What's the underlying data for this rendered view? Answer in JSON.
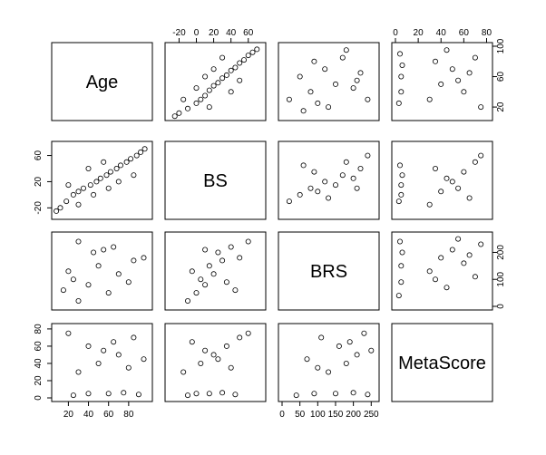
{
  "chart_data": {
    "type": "scatter",
    "variables": [
      "Age",
      "BS",
      "BRS",
      "MetaScore"
    ],
    "axes": {
      "Age": {
        "range": [
          7,
          100
        ],
        "ticks": [
          20,
          40,
          60,
          80
        ],
        "tick_labels": [
          "20",
          "40",
          "60",
          "80"
        ]
      },
      "BS": {
        "range": [
          -32,
          76
        ],
        "ticks": [
          -20,
          0,
          20,
          40,
          60
        ],
        "tick_labels": [
          "-20",
          "0",
          "20",
          "40",
          "60"
        ]
      },
      "BRS": {
        "range": [
          0,
          262
        ],
        "ticks": [
          0,
          50,
          100,
          150,
          200,
          250
        ],
        "tick_labels": [
          "0",
          "50",
          "100",
          "150",
          "200",
          "250"
        ]
      },
      "MetaScore": {
        "range": [
          0,
          82
        ],
        "ticks": [
          0,
          20,
          40,
          60,
          80
        ],
        "tick_labels": [
          "0",
          "20",
          "40",
          "60",
          "80"
        ]
      }
    },
    "right_axis_ticks": {
      "Age": {
        "ticks": [
          20,
          60,
          100
        ],
        "tick_labels": [
          "20",
          "60",
          "100"
        ]
      },
      "BRS": {
        "ticks": [
          0,
          100,
          200
        ],
        "tick_labels": [
          "0",
          "100",
          "200"
        ]
      }
    },
    "left_axis_ticks": {
      "BS": {
        "ticks": [
          -20,
          20,
          60
        ],
        "tick_labels": [
          "-20",
          "20",
          "60"
        ]
      }
    },
    "pairs": [
      {
        "x": "BS",
        "y": "Age",
        "relationship": "positive, roughly linear",
        "points": [
          [
            -20,
            12
          ],
          [
            -10,
            18
          ],
          [
            0,
            25
          ],
          [
            5,
            30
          ],
          [
            10,
            35
          ],
          [
            15,
            42
          ],
          [
            20,
            48
          ],
          [
            25,
            52
          ],
          [
            30,
            58
          ],
          [
            35,
            62
          ],
          [
            40,
            68
          ],
          [
            45,
            72
          ],
          [
            50,
            78
          ],
          [
            55,
            82
          ],
          [
            60,
            88
          ],
          [
            65,
            92
          ],
          [
            70,
            96
          ],
          [
            -15,
            30
          ],
          [
            0,
            45
          ],
          [
            10,
            60
          ],
          [
            20,
            70
          ],
          [
            30,
            85
          ],
          [
            -25,
            8
          ],
          [
            40,
            40
          ],
          [
            50,
            55
          ],
          [
            15,
            20
          ]
        ]
      },
      {
        "x": "BRS",
        "y": "Age",
        "relationship": "no clear relationship",
        "points": [
          [
            20,
            30
          ],
          [
            50,
            60
          ],
          [
            80,
            40
          ],
          [
            100,
            25
          ],
          [
            120,
            70
          ],
          [
            150,
            50
          ],
          [
            170,
            85
          ],
          [
            200,
            45
          ],
          [
            220,
            65
          ],
          [
            240,
            30
          ],
          [
            180,
            95
          ],
          [
            130,
            20
          ],
          [
            90,
            80
          ],
          [
            60,
            15
          ],
          [
            210,
            55
          ]
        ]
      },
      {
        "x": "MetaScore",
        "y": "Age",
        "relationship": "two clusters: low MetaScore (about 2-10) and 20-80",
        "points": [
          [
            3,
            25
          ],
          [
            5,
            40
          ],
          [
            5,
            60
          ],
          [
            6,
            75
          ],
          [
            4,
            90
          ],
          [
            30,
            30
          ],
          [
            40,
            50
          ],
          [
            50,
            70
          ],
          [
            60,
            40
          ],
          [
            70,
            85
          ],
          [
            75,
            20
          ],
          [
            45,
            95
          ],
          [
            55,
            55
          ],
          [
            65,
            65
          ],
          [
            35,
            80
          ]
        ]
      },
      {
        "x": "BRS",
        "y": "BS",
        "relationship": "weak positive",
        "points": [
          [
            20,
            -10
          ],
          [
            50,
            0
          ],
          [
            80,
            10
          ],
          [
            100,
            5
          ],
          [
            120,
            20
          ],
          [
            150,
            15
          ],
          [
            170,
            30
          ],
          [
            200,
            25
          ],
          [
            220,
            40
          ],
          [
            240,
            60
          ],
          [
            180,
            50
          ],
          [
            130,
            -5
          ],
          [
            90,
            35
          ],
          [
            60,
            45
          ],
          [
            210,
            10
          ]
        ]
      },
      {
        "x": "MetaScore",
        "y": "BS",
        "relationship": "two clusters: low MetaScore (about 2-10) and 20-80",
        "points": [
          [
            3,
            -10
          ],
          [
            5,
            0
          ],
          [
            5,
            15
          ],
          [
            6,
            30
          ],
          [
            4,
            45
          ],
          [
            30,
            -15
          ],
          [
            40,
            5
          ],
          [
            50,
            20
          ],
          [
            60,
            35
          ],
          [
            70,
            50
          ],
          [
            75,
            60
          ],
          [
            45,
            25
          ],
          [
            55,
            10
          ],
          [
            65,
            -5
          ],
          [
            35,
            40
          ]
        ]
      },
      {
        "x": "MetaScore",
        "y": "BRS",
        "relationship": "two clusters: low MetaScore (about 2-10) and 20-80",
        "points": [
          [
            3,
            40
          ],
          [
            5,
            90
          ],
          [
            5,
            150
          ],
          [
            6,
            200
          ],
          [
            4,
            240
          ],
          [
            30,
            130
          ],
          [
            40,
            180
          ],
          [
            50,
            210
          ],
          [
            60,
            160
          ],
          [
            70,
            110
          ],
          [
            75,
            230
          ],
          [
            45,
            70
          ],
          [
            55,
            250
          ],
          [
            65,
            190
          ],
          [
            35,
            100
          ]
        ]
      }
    ]
  }
}
